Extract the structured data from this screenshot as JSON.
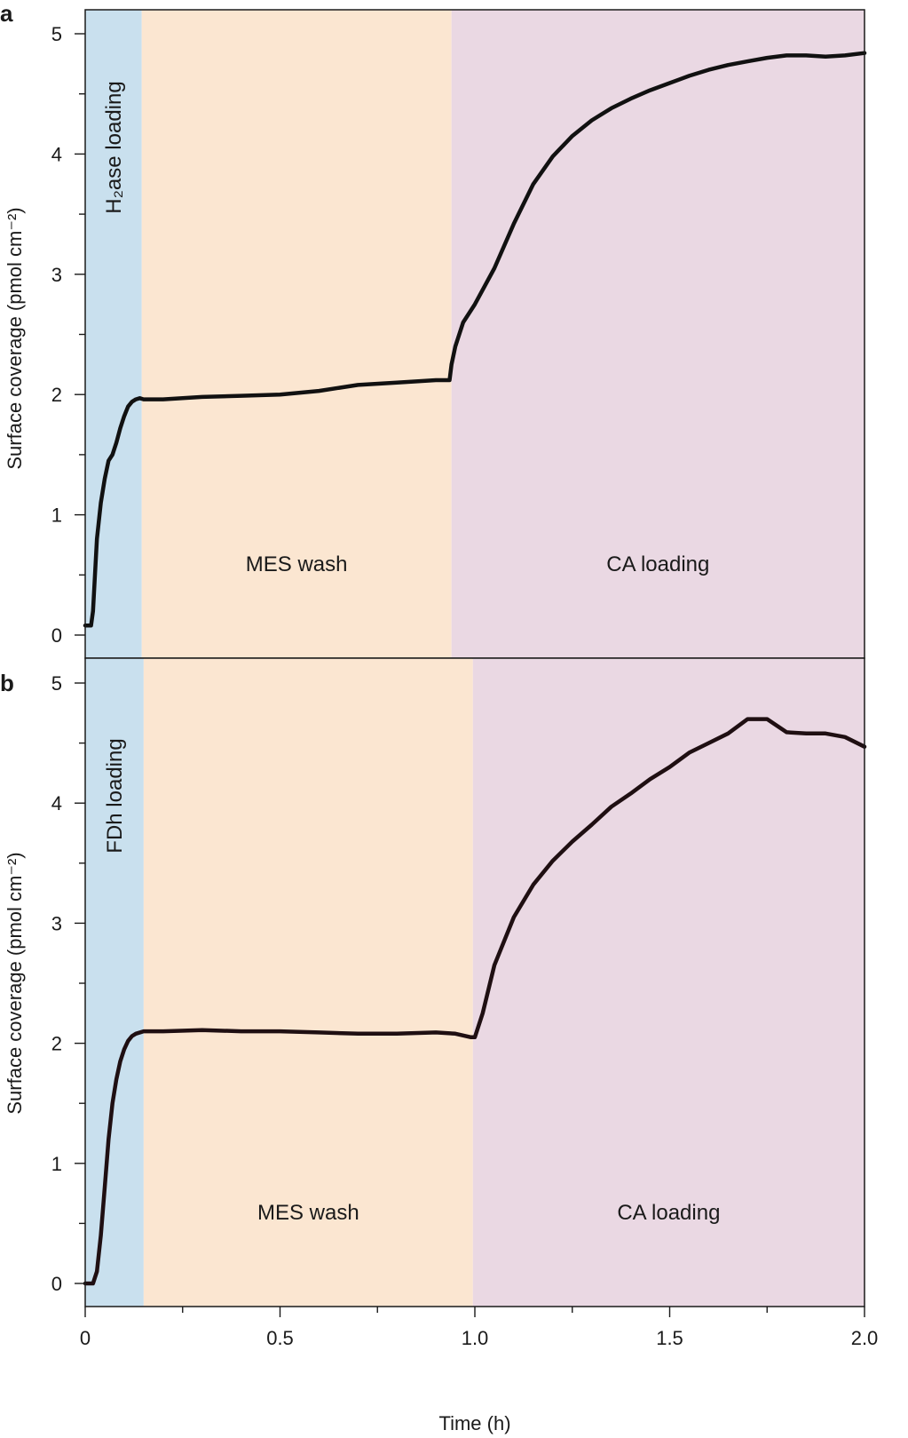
{
  "chart_data": [
    {
      "type": "line",
      "panel": "a",
      "ylabel": "Surface coverage (pmol cm⁻²)",
      "xlim": [
        0,
        2.0
      ],
      "ylim": [
        -0.15,
        5.2
      ],
      "yticks": [
        0,
        1,
        2,
        3,
        4,
        5
      ],
      "regions": [
        {
          "label": "H₂ase loading",
          "start": 0.0,
          "end": 0.145,
          "color": "#c9e0ee",
          "orientation": "vertical"
        },
        {
          "label": "MES wash",
          "start": 0.145,
          "end": 0.94,
          "color": "#fbe6d1",
          "orientation": "horizontal"
        },
        {
          "label": "CA loading",
          "start": 0.94,
          "end": 2.0,
          "color": "#ead8e3",
          "orientation": "horizontal"
        }
      ],
      "series": [
        {
          "x": [
            0.0,
            0.015,
            0.02,
            0.025,
            0.03,
            0.04,
            0.05,
            0.06,
            0.07,
            0.08,
            0.09,
            0.1,
            0.11,
            0.12,
            0.13,
            0.14,
            0.15,
            0.2,
            0.3,
            0.4,
            0.5,
            0.6,
            0.7,
            0.8,
            0.9,
            0.935,
            0.94,
            0.95,
            0.97,
            1.0,
            1.05,
            1.1,
            1.15,
            1.2,
            1.25,
            1.3,
            1.35,
            1.4,
            1.45,
            1.5,
            1.55,
            1.6,
            1.65,
            1.7,
            1.75,
            1.8,
            1.85,
            1.9,
            1.95,
            2.0
          ],
          "y": [
            0.08,
            0.08,
            0.2,
            0.5,
            0.8,
            1.1,
            1.3,
            1.45,
            1.5,
            1.6,
            1.72,
            1.82,
            1.9,
            1.94,
            1.96,
            1.97,
            1.96,
            1.96,
            1.98,
            1.99,
            2.0,
            2.03,
            2.08,
            2.1,
            2.12,
            2.12,
            2.25,
            2.4,
            2.6,
            2.75,
            3.05,
            3.42,
            3.75,
            3.98,
            4.15,
            4.28,
            4.38,
            4.46,
            4.53,
            4.59,
            4.65,
            4.7,
            4.74,
            4.77,
            4.8,
            4.82,
            4.82,
            4.81,
            4.82,
            4.84
          ]
        }
      ]
    },
    {
      "type": "line",
      "panel": "b",
      "ylabel": "Surface coverage (pmol cm⁻²)",
      "xlabel": "Time (h)",
      "xlim": [
        0,
        2.0
      ],
      "ylim": [
        -0.15,
        5.2
      ],
      "xticks": [
        0,
        0.5,
        1.0,
        1.5,
        2.0
      ],
      "xtick_labels": [
        "0",
        "0.5",
        "1.0",
        "1.5",
        "2.0"
      ],
      "yticks": [
        0,
        1,
        2,
        3,
        4,
        5
      ],
      "regions": [
        {
          "label": "FDh loading",
          "start": 0.0,
          "end": 0.15,
          "color": "#c9e0ee",
          "orientation": "vertical"
        },
        {
          "label": "MES wash",
          "start": 0.15,
          "end": 0.995,
          "color": "#fbe6d1",
          "orientation": "horizontal"
        },
        {
          "label": "CA loading",
          "start": 0.995,
          "end": 2.0,
          "color": "#ead8e3",
          "orientation": "horizontal"
        }
      ],
      "series": [
        {
          "x": [
            0.0,
            0.02,
            0.03,
            0.04,
            0.05,
            0.06,
            0.07,
            0.08,
            0.09,
            0.1,
            0.11,
            0.12,
            0.13,
            0.15,
            0.2,
            0.3,
            0.4,
            0.5,
            0.6,
            0.7,
            0.8,
            0.9,
            0.95,
            0.99,
            1.0,
            1.02,
            1.05,
            1.1,
            1.15,
            1.2,
            1.25,
            1.3,
            1.35,
            1.4,
            1.45,
            1.5,
            1.55,
            1.6,
            1.65,
            1.7,
            1.75,
            1.8,
            1.85,
            1.9,
            1.95,
            2.0
          ],
          "y": [
            0.0,
            0.0,
            0.1,
            0.4,
            0.8,
            1.2,
            1.5,
            1.7,
            1.85,
            1.95,
            2.02,
            2.06,
            2.08,
            2.1,
            2.1,
            2.11,
            2.1,
            2.1,
            2.09,
            2.08,
            2.08,
            2.09,
            2.08,
            2.05,
            2.05,
            2.25,
            2.65,
            3.05,
            3.32,
            3.52,
            3.68,
            3.82,
            3.97,
            4.08,
            4.2,
            4.3,
            4.42,
            4.5,
            4.58,
            4.7,
            4.7,
            4.59,
            4.58,
            4.58,
            4.55,
            4.47
          ]
        }
      ]
    }
  ]
}
